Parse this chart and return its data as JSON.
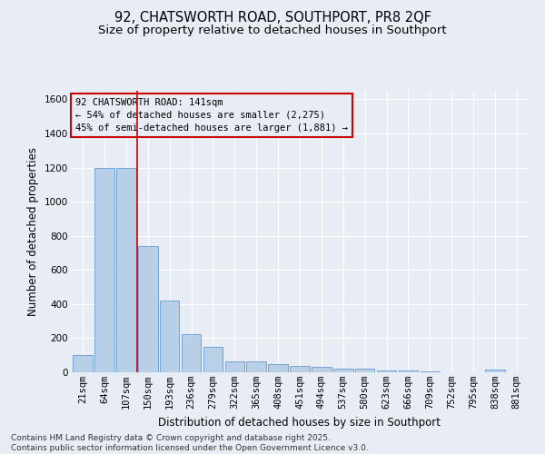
{
  "title": "92, CHATSWORTH ROAD, SOUTHPORT, PR8 2QF",
  "subtitle": "Size of property relative to detached houses in Southport",
  "xlabel": "Distribution of detached houses by size in Southport",
  "ylabel": "Number of detached properties",
  "categories": [
    "21sqm",
    "64sqm",
    "107sqm",
    "150sqm",
    "193sqm",
    "236sqm",
    "279sqm",
    "322sqm",
    "365sqm",
    "408sqm",
    "451sqm",
    "494sqm",
    "537sqm",
    "580sqm",
    "623sqm",
    "666sqm",
    "709sqm",
    "752sqm",
    "795sqm",
    "838sqm",
    "881sqm"
  ],
  "values": [
    100,
    1195,
    1195,
    740,
    420,
    225,
    150,
    65,
    65,
    50,
    35,
    30,
    20,
    20,
    12,
    10,
    5,
    0,
    0,
    15,
    0
  ],
  "bar_color": "#b8cfe8",
  "bar_edge_color": "#6699cc",
  "bg_color": "#e8edf5",
  "grid_color": "#ffffff",
  "vline_color": "#cc0000",
  "vline_pos": 2.5,
  "annotation_title": "92 CHATSWORTH ROAD: 141sqm",
  "annotation_line1": "← 54% of detached houses are smaller (2,275)",
  "annotation_line2": "45% of semi-detached houses are larger (1,881) →",
  "annotation_box_color": "#cc0000",
  "footer1": "Contains HM Land Registry data © Crown copyright and database right 2025.",
  "footer2": "Contains public sector information licensed under the Open Government Licence v3.0.",
  "ylim": [
    0,
    1650
  ],
  "yticks": [
    0,
    200,
    400,
    600,
    800,
    1000,
    1200,
    1400,
    1600
  ],
  "title_fontsize": 10.5,
  "subtitle_fontsize": 9.5,
  "axis_label_fontsize": 8.5,
  "tick_fontsize": 7.5,
  "annotation_fontsize": 7.5,
  "footer_fontsize": 6.5
}
